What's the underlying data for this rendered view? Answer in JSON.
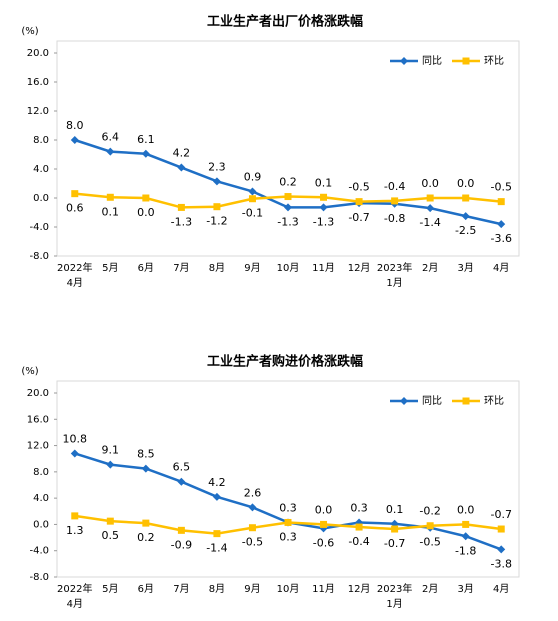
{
  "chart_data": [
    {
      "type": "line",
      "title": "工业生产者出厂价格涨跌幅",
      "y_label": "(%)",
      "categories": [
        [
          "2022年",
          "4月"
        ],
        "5月",
        "6月",
        "7月",
        "8月",
        "9月",
        "10月",
        "11月",
        "12月",
        [
          "2023年",
          "1月"
        ],
        "2月",
        "3月",
        "4月"
      ],
      "series": [
        {
          "name": "同比",
          "color": "#1f6fc5",
          "values": [
            8.0,
            6.4,
            6.1,
            4.2,
            2.3,
            0.9,
            -1.3,
            -1.3,
            -0.7,
            -0.8,
            -1.4,
            -2.5,
            -3.6
          ],
          "value_labels": [
            "8.0",
            "6.4",
            "6.1",
            "4.2",
            "2.3",
            "0.9",
            "-1.3",
            "-1.3",
            "-0.7",
            "-0.8",
            "-1.4",
            "-2.5",
            "-3.6"
          ]
        },
        {
          "name": "环比",
          "color": "#ffc000",
          "values": [
            0.6,
            0.1,
            0.0,
            -1.3,
            -1.2,
            -0.1,
            0.2,
            0.1,
            -0.5,
            -0.4,
            0.0,
            0.0,
            -0.5
          ],
          "value_labels": [
            "0.6",
            "0.1",
            "0.0",
            "-1.3",
            "-1.2",
            "-0.1",
            "0.2",
            "0.1",
            "-0.5",
            "-0.4",
            "0.0",
            "0.0",
            "-0.5"
          ]
        }
      ],
      "ylim": [
        -8,
        20
      ],
      "yticks": [
        {
          "value": -8,
          "label": "-8.0"
        },
        {
          "value": -4,
          "label": "-4.0"
        },
        {
          "value": 0,
          "label": "0.0"
        },
        {
          "value": 4,
          "label": "4.0"
        },
        {
          "value": 8,
          "label": "8.0"
        },
        {
          "value": 12,
          "label": "12.0"
        },
        {
          "value": 16,
          "label": "16.0"
        },
        {
          "value": 20,
          "label": "20.0"
        }
      ],
      "legend": "upper right"
    },
    {
      "type": "line",
      "title": "工业生产者购进价格涨跌幅",
      "y_label": "(%)",
      "categories": [
        [
          "2022年",
          "4月"
        ],
        "5月",
        "6月",
        "7月",
        "8月",
        "9月",
        "10月",
        "11月",
        "12月",
        [
          "2023年",
          "1月"
        ],
        "2月",
        "3月",
        "4月"
      ],
      "series": [
        {
          "name": "同比",
          "color": "#1f6fc5",
          "values": [
            10.8,
            9.1,
            8.5,
            6.5,
            4.2,
            2.6,
            0.3,
            -0.6,
            0.3,
            0.1,
            -0.5,
            -1.8,
            -3.8
          ],
          "value_labels": [
            "10.8",
            "9.1",
            "8.5",
            "6.5",
            "4.2",
            "2.6",
            "0.3",
            "-0.6",
            "0.3",
            "0.1",
            "-0.5",
            "-1.8",
            "-3.8"
          ]
        },
        {
          "name": "环比",
          "color": "#ffc000",
          "values": [
            1.3,
            0.5,
            0.2,
            -0.9,
            -1.4,
            -0.5,
            0.3,
            0.0,
            -0.4,
            -0.7,
            -0.2,
            0.0,
            -0.7
          ],
          "value_labels": [
            "1.3",
            "0.5",
            "0.2",
            "-0.9",
            "-1.4",
            "-0.5",
            "0.3",
            "0.0",
            "-0.4",
            "-0.7",
            "-0.2",
            "0.0",
            "-0.7"
          ]
        }
      ],
      "ylim": [
        -8,
        20
      ],
      "yticks": [
        {
          "value": -8,
          "label": "-8.0"
        },
        {
          "value": -4,
          "label": "-4.0"
        },
        {
          "value": 0,
          "label": "0.0"
        },
        {
          "value": 4,
          "label": "4.0"
        },
        {
          "value": 8,
          "label": "8.0"
        },
        {
          "value": 12,
          "label": "12.0"
        },
        {
          "value": 16,
          "label": "16.0"
        },
        {
          "value": 20,
          "label": "20.0"
        }
      ],
      "legend": "upper right"
    }
  ]
}
